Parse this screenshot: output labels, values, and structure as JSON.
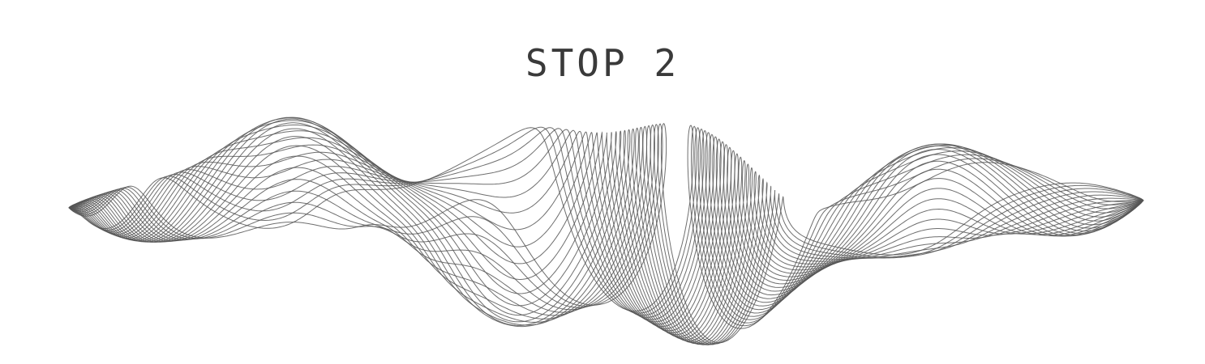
{
  "title": "STOP 2",
  "artwork": {
    "name": "abstract-sound-wave-lines",
    "line_count": 26,
    "colors": {
      "background": "#ffffff",
      "line": "#555555",
      "title": "#3a3a3a"
    }
  }
}
